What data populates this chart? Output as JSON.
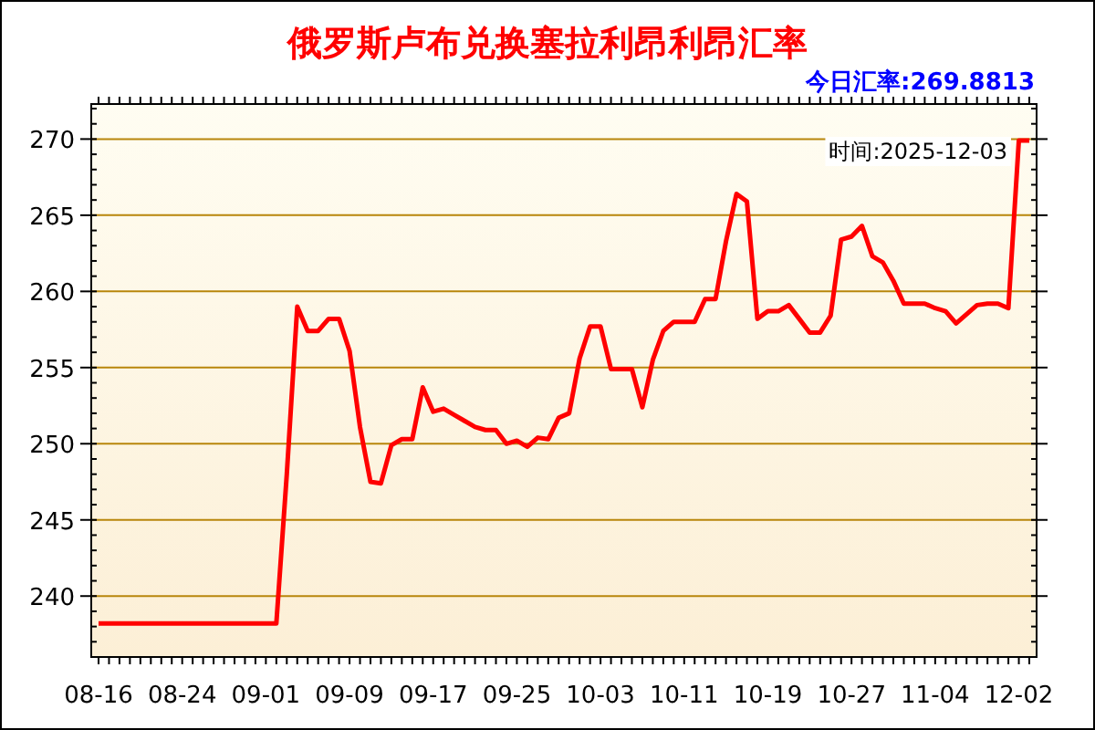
{
  "chart_data": {
    "type": "line",
    "title": "俄罗斯卢布兑换塞拉利昂利昂汇率",
    "subtitle": "今日汇率:269.8813",
    "annotations": [
      "时间:2025-12-03"
    ],
    "categories": [
      "08-16",
      null,
      null,
      null,
      null,
      null,
      null,
      null,
      "08-24",
      null,
      null,
      null,
      null,
      null,
      null,
      null,
      "09-01",
      null,
      null,
      null,
      null,
      null,
      null,
      null,
      "09-09",
      null,
      null,
      null,
      null,
      null,
      null,
      null,
      "09-17",
      null,
      null,
      null,
      null,
      null,
      null,
      null,
      "09-25",
      null,
      null,
      null,
      null,
      null,
      null,
      null,
      "10-03",
      null,
      null,
      null,
      null,
      null,
      null,
      null,
      "10-11",
      null,
      null,
      null,
      null,
      null,
      null,
      null,
      "10-19",
      null,
      null,
      null,
      null,
      null,
      null,
      null,
      "10-27",
      null,
      null,
      null,
      null,
      null,
      null,
      null,
      "11-04",
      null,
      null,
      null,
      null,
      null,
      null,
      null,
      "12-02",
      null
    ],
    "series": [
      {
        "color": "#ff0000",
        "values": [
          238.2,
          238.2,
          238.2,
          238.2,
          238.2,
          238.2,
          238.2,
          238.2,
          238.2,
          238.2,
          238.2,
          238.2,
          238.2,
          238.2,
          238.2,
          238.2,
          238.2,
          238.2,
          248.0,
          259.0,
          257.4,
          257.4,
          258.2,
          258.2,
          256.1,
          251.1,
          247.5,
          247.4,
          249.9,
          250.3,
          250.3,
          253.7,
          252.1,
          252.3,
          251.9,
          251.5,
          251.1,
          250.9,
          250.9,
          250.0,
          250.2,
          249.8,
          250.4,
          250.3,
          251.7,
          252.0,
          255.6,
          257.7,
          257.7,
          254.9,
          254.9,
          254.9,
          252.4,
          255.5,
          257.4,
          258.0,
          258.0,
          258.0,
          259.5,
          259.5,
          263.3,
          266.4,
          265.9,
          258.2,
          258.7,
          258.7,
          259.1,
          258.2,
          257.3,
          257.3,
          258.4,
          263.4,
          263.6,
          264.3,
          262.3,
          261.9,
          260.7,
          259.2,
          259.2,
          259.2,
          258.9,
          258.7,
          257.9,
          258.5,
          259.1,
          259.2,
          259.2,
          258.9,
          269.9,
          269.9
        ]
      }
    ],
    "ylim": [
      236,
      272.3
    ],
    "yticks": [
      240,
      245,
      250,
      255,
      260,
      265,
      270
    ],
    "grid": "y"
  }
}
